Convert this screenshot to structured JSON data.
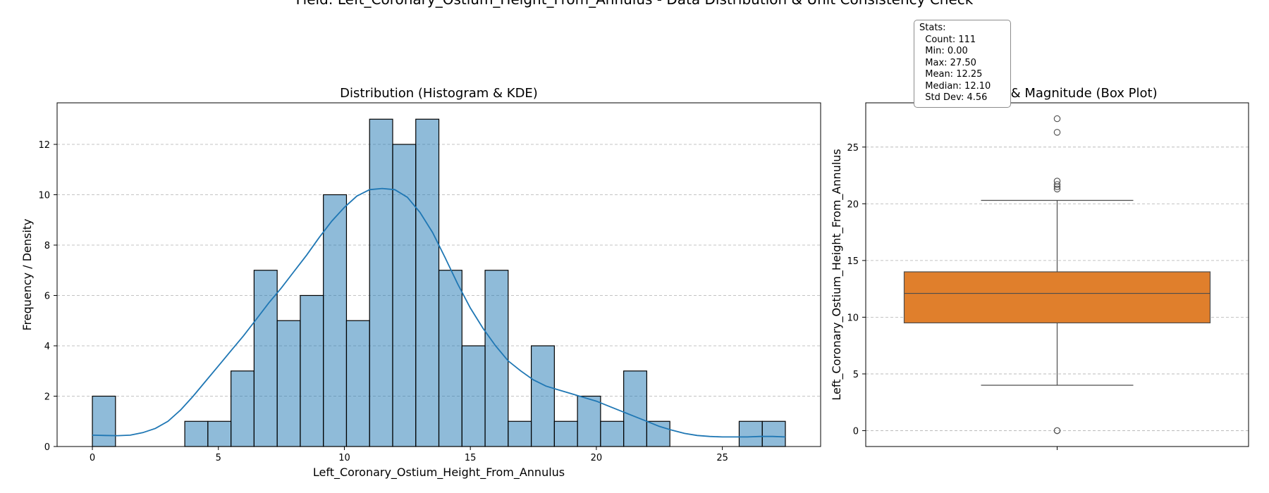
{
  "suptitle": "Field: Left_Coronary_Ostium_Height_From_Annulus - Data Distribution & Unit Consistency Check",
  "stats": {
    "title": "Stats:",
    "lines": [
      "Count: 111",
      "Min: 0.00",
      "Max: 27.50",
      "Mean: 12.25",
      "Median: 12.10",
      "Std Dev: 4.56"
    ]
  },
  "chart_data": [
    {
      "type": "bar",
      "title": "Distribution (Histogram & KDE)",
      "xlabel": "Left_Coronary_Ostium_Height_From_Annulus",
      "ylabel": "Frequency / Density",
      "xlim": [
        -1.4,
        28.9
      ],
      "ylim": [
        0,
        13.65
      ],
      "xticks": [
        0,
        5,
        10,
        15,
        20,
        25
      ],
      "yticks": [
        0,
        2,
        4,
        6,
        8,
        10,
        12
      ],
      "grid": "y dashed",
      "bar_color": "#1f77b4",
      "bin_start": 0,
      "bin_width": 0.9167,
      "counts": [
        2,
        0,
        0,
        0,
        1,
        1,
        3,
        7,
        5,
        6,
        10,
        5,
        13,
        12,
        13,
        7,
        4,
        7,
        1,
        4,
        1,
        2,
        1,
        3,
        1,
        0,
        0,
        0,
        1,
        1
      ],
      "kde": {
        "x": [
          0,
          0.5,
          1,
          1.5,
          2,
          2.5,
          3,
          3.5,
          4,
          4.5,
          5,
          5.5,
          6,
          6.5,
          7,
          7.5,
          8,
          8.5,
          9,
          9.5,
          10,
          10.5,
          11,
          11.5,
          12,
          12.5,
          13,
          13.5,
          14,
          14.5,
          15,
          15.5,
          16,
          16.5,
          17,
          17.5,
          18,
          18.5,
          19,
          19.5,
          20,
          20.5,
          21,
          21.5,
          22,
          22.5,
          23,
          23.5,
          24,
          24.5,
          25,
          25.5,
          26,
          26.5,
          27,
          27.5
        ],
        "y": [
          0.45,
          0.44,
          0.43,
          0.45,
          0.55,
          0.72,
          1.0,
          1.45,
          2.0,
          2.6,
          3.2,
          3.8,
          4.4,
          5.05,
          5.7,
          6.3,
          6.95,
          7.6,
          8.3,
          8.95,
          9.5,
          9.95,
          10.2,
          10.25,
          10.2,
          9.9,
          9.3,
          8.5,
          7.5,
          6.45,
          5.5,
          4.7,
          4.0,
          3.4,
          3.0,
          2.65,
          2.4,
          2.25,
          2.1,
          1.95,
          1.8,
          1.6,
          1.4,
          1.2,
          1.0,
          0.8,
          0.65,
          0.52,
          0.44,
          0.4,
          0.38,
          0.38,
          0.38,
          0.4,
          0.4,
          0.38
        ]
      }
    },
    {
      "type": "box",
      "title": "Outliers & Magnitude (Box Plot)",
      "ylabel": "Left_Coronary_Ostium_Height_From_Annulus",
      "ylim": [
        -1.4,
        28.9
      ],
      "yticks": [
        0,
        5,
        10,
        15,
        20,
        25
      ],
      "grid": "y dashed",
      "box_color": "#e07f2c",
      "q1": 9.5,
      "median": 12.1,
      "q3": 14.0,
      "whisker_low": 4.0,
      "whisker_high": 20.3,
      "outliers": [
        27.5,
        26.3,
        22.0,
        21.7,
        21.5,
        21.3,
        0.0,
        0.0
      ]
    }
  ]
}
